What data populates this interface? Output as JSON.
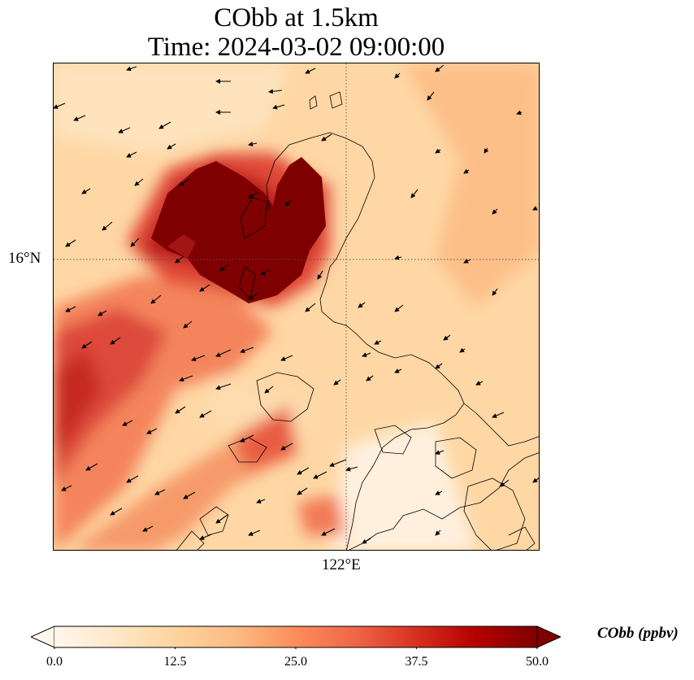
{
  "title": {
    "line1": "CObb at 1.5km",
    "line2": "Time: 2024-03-02 09:00:00"
  },
  "axes": {
    "lat_tick": "16°N",
    "lon_tick": "122°E"
  },
  "colorbar": {
    "label": "CObb (ppbv)",
    "min": 0.0,
    "max": 50.0,
    "ticks": [
      "0.0",
      "12.5",
      "25.0",
      "37.5",
      "50.0"
    ],
    "colormap": "OrRd",
    "colors": [
      "#fff7ec",
      "#fee8c8",
      "#fdd49e",
      "#fdbb84",
      "#fc8d59",
      "#ef6548",
      "#d7301f",
      "#b30000",
      "#7f0000"
    ],
    "extend": "both"
  },
  "map": {
    "gridlines": "dotted",
    "coastlines": true,
    "wind_vectors": true
  }
}
